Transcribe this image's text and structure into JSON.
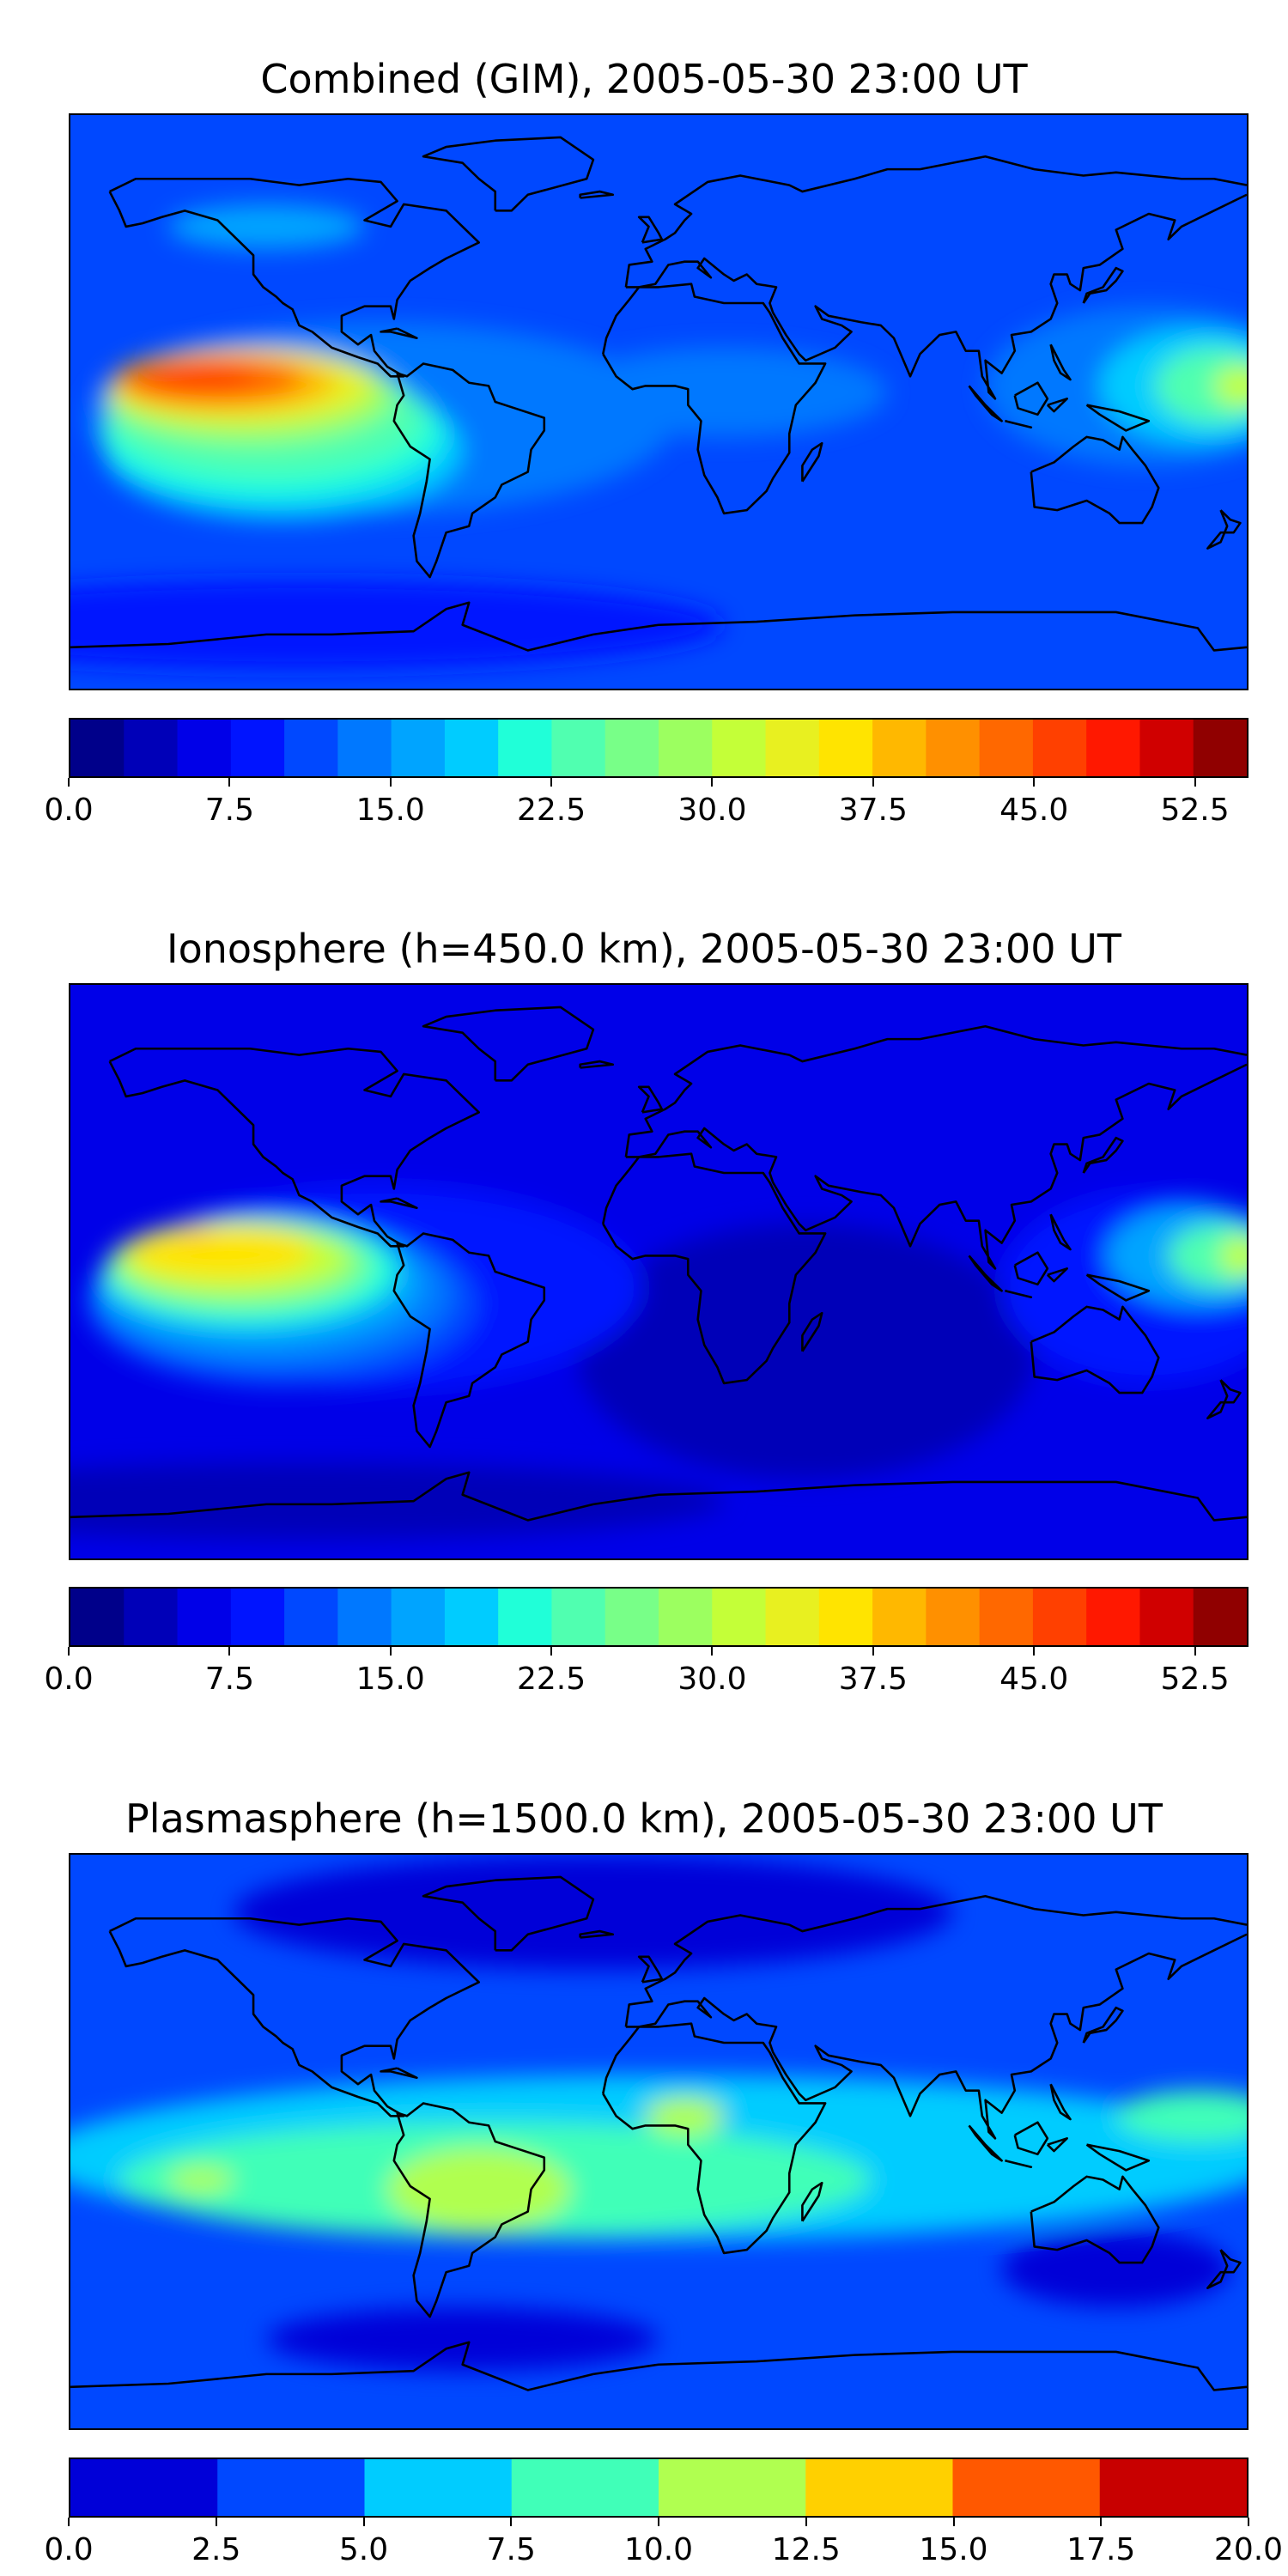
{
  "panels": [
    {
      "id": "combined",
      "title": "Combined (GIM), 2005-05-30 23:00 UT",
      "colorbar": {
        "min": 0.0,
        "max": 55.0,
        "colors": [
          "#00008a",
          "#0000b8",
          "#0000e8",
          "#0014ff",
          "#0048ff",
          "#0078ff",
          "#00a4ff",
          "#00ccff",
          "#20ffd8",
          "#50ffb0",
          "#78ff88",
          "#9cff60",
          "#c4ff38",
          "#e8f020",
          "#ffe400",
          "#ffb800",
          "#ff9000",
          "#ff6800",
          "#ff4000",
          "#ff1800",
          "#d00000",
          "#900000"
        ],
        "tick_labels": [
          "0.0",
          "7.5",
          "15.0",
          "22.5",
          "30.0",
          "37.5",
          "45.0",
          "52.5"
        ],
        "tick_values": [
          0.0,
          7.5,
          15.0,
          22.5,
          30.0,
          37.5,
          45.0,
          52.5
        ]
      },
      "background_color": "#0048ff",
      "features": [
        {
          "color": "#0078ff",
          "lon": -85,
          "lat": -5,
          "rx": 90,
          "ry": 30
        },
        {
          "color": "#0078ff",
          "lon": 150,
          "lat": 5,
          "rx": 50,
          "ry": 25
        },
        {
          "color": "#00a4ff",
          "lon": -120,
          "lat": 55,
          "rx": 30,
          "ry": 7
        },
        {
          "color": "#00ccff",
          "lon": -115,
          "lat": -15,
          "rx": 55,
          "ry": 22
        },
        {
          "color": "#20ffd8",
          "lon": -118,
          "lat": -10,
          "rx": 52,
          "ry": 20
        },
        {
          "color": "#50ffb0",
          "lon": -120,
          "lat": -5,
          "rx": 48,
          "ry": 18
        },
        {
          "color": "#9cff60",
          "lon": -125,
          "lat": 2,
          "rx": 44,
          "ry": 15
        },
        {
          "color": "#e8f020",
          "lon": -128,
          "lat": 5,
          "rx": 40,
          "ry": 12
        },
        {
          "color": "#ffb800",
          "lon": -133,
          "lat": 6,
          "rx": 34,
          "ry": 9
        },
        {
          "color": "#ff6800",
          "lon": -137,
          "lat": 7,
          "rx": 28,
          "ry": 7
        },
        {
          "color": "#ff4000",
          "lon": -141,
          "lat": 8,
          "rx": 18,
          "ry": 4
        },
        {
          "color": "#00ccff",
          "lon": 165,
          "lat": 5,
          "rx": 30,
          "ry": 18
        },
        {
          "color": "#50ffb0",
          "lon": 170,
          "lat": 5,
          "rx": 18,
          "ry": 12
        },
        {
          "color": "#c4ff38",
          "lon": 178,
          "lat": 5,
          "rx": 8,
          "ry": 6
        },
        {
          "color": "#0078ff",
          "lon": 20,
          "lat": 3,
          "rx": 50,
          "ry": 14
        },
        {
          "color": "#0014ff",
          "lon": -110,
          "lat": -70,
          "rx": 130,
          "ry": 14
        }
      ]
    },
    {
      "id": "ionosphere",
      "title": "Ionosphere  (h=450.0 km), 2005-05-30 23:00 UT",
      "colorbar": {
        "min": 0.0,
        "max": 55.0,
        "colors": [
          "#00008a",
          "#0000b8",
          "#0000e8",
          "#0014ff",
          "#0048ff",
          "#0078ff",
          "#00a4ff",
          "#00ccff",
          "#20ffd8",
          "#50ffb0",
          "#78ff88",
          "#9cff60",
          "#c4ff38",
          "#e8f020",
          "#ffe400",
          "#ffb800",
          "#ff9000",
          "#ff6800",
          "#ff4000",
          "#ff1800",
          "#d00000",
          "#900000"
        ],
        "tick_labels": [
          "0.0",
          "7.5",
          "15.0",
          "22.5",
          "30.0",
          "37.5",
          "45.0",
          "52.5"
        ],
        "tick_values": [
          0.0,
          7.5,
          15.0,
          22.5,
          30.0,
          37.5,
          45.0,
          52.5
        ]
      },
      "background_color": "#0000e8",
      "features": [
        {
          "color": "#0000b8",
          "lon": 45,
          "lat": -25,
          "rx": 70,
          "ry": 40
        },
        {
          "color": "#0014ff",
          "lon": -85,
          "lat": -5,
          "rx": 80,
          "ry": 32
        },
        {
          "color": "#0014ff",
          "lon": 150,
          "lat": -5,
          "rx": 45,
          "ry": 30
        },
        {
          "color": "#0048ff",
          "lon": -115,
          "lat": -10,
          "rx": 60,
          "ry": 26
        },
        {
          "color": "#0078ff",
          "lon": -118,
          "lat": -7,
          "rx": 55,
          "ry": 23
        },
        {
          "color": "#00a4ff",
          "lon": -122,
          "lat": -4,
          "rx": 50,
          "ry": 20
        },
        {
          "color": "#20ffd8",
          "lon": -125,
          "lat": 0,
          "rx": 45,
          "ry": 17
        },
        {
          "color": "#78ff88",
          "lon": -128,
          "lat": 2,
          "rx": 40,
          "ry": 14
        },
        {
          "color": "#c4ff38",
          "lon": -130,
          "lat": 4,
          "rx": 35,
          "ry": 11
        },
        {
          "color": "#ffe400",
          "lon": -134,
          "lat": 6,
          "rx": 28,
          "ry": 8
        },
        {
          "color": "#ffb800",
          "lon": -142,
          "lat": 12,
          "rx": 6,
          "ry": 2
        },
        {
          "color": "#00a4ff",
          "lon": 165,
          "lat": 5,
          "rx": 28,
          "ry": 16
        },
        {
          "color": "#50ffb0",
          "lon": 172,
          "lat": 5,
          "rx": 16,
          "ry": 10
        },
        {
          "color": "#c4ff38",
          "lon": 178,
          "lat": 5,
          "rx": 6,
          "ry": 6
        },
        {
          "color": "#0000b8",
          "lon": -110,
          "lat": -72,
          "rx": 130,
          "ry": 12
        }
      ]
    },
    {
      "id": "plasmasphere",
      "title": "Plasmasphere (h=1500.0 km), 2005-05-30 23:00 UT",
      "colorbar": {
        "min": 0.0,
        "max": 20.0,
        "colors": [
          "#0000d8",
          "#0048ff",
          "#00ccff",
          "#40ffb8",
          "#b0ff50",
          "#ffd000",
          "#ff5800",
          "#c80000"
        ],
        "tick_labels": [
          "0.0",
          "2.5",
          "5.0",
          "7.5",
          "10.0",
          "12.5",
          "15.0",
          "17.5",
          "20.0"
        ],
        "tick_values": [
          0.0,
          2.5,
          5.0,
          7.5,
          10.0,
          12.5,
          15.0,
          17.5,
          20.0
        ]
      },
      "background_color": "#0048ff",
      "features": [
        {
          "color": "#0000d8",
          "lon": -20,
          "lat": 72,
          "rx": 110,
          "ry": 18
        },
        {
          "color": "#0000d8",
          "lon": -60,
          "lat": -62,
          "rx": 60,
          "ry": 10
        },
        {
          "color": "#0000d8",
          "lon": 140,
          "lat": -40,
          "rx": 35,
          "ry": 12
        },
        {
          "color": "#00ccff",
          "lon": 0,
          "lat": -5,
          "rx": 190,
          "ry": 26
        },
        {
          "color": "#40ffb8",
          "lon": -50,
          "lat": -12,
          "rx": 115,
          "ry": 18
        },
        {
          "color": "#40ffb8",
          "lon": 165,
          "lat": 8,
          "rx": 25,
          "ry": 8
        },
        {
          "color": "#b0ff50",
          "lon": -55,
          "lat": -15,
          "rx": 28,
          "ry": 13
        },
        {
          "color": "#b0ff50",
          "lon": -140,
          "lat": -12,
          "rx": 10,
          "ry": 4
        },
        {
          "color": "#b0ff50",
          "lon": 8,
          "lat": 8,
          "rx": 12,
          "ry": 6
        }
      ]
    }
  ]
}
